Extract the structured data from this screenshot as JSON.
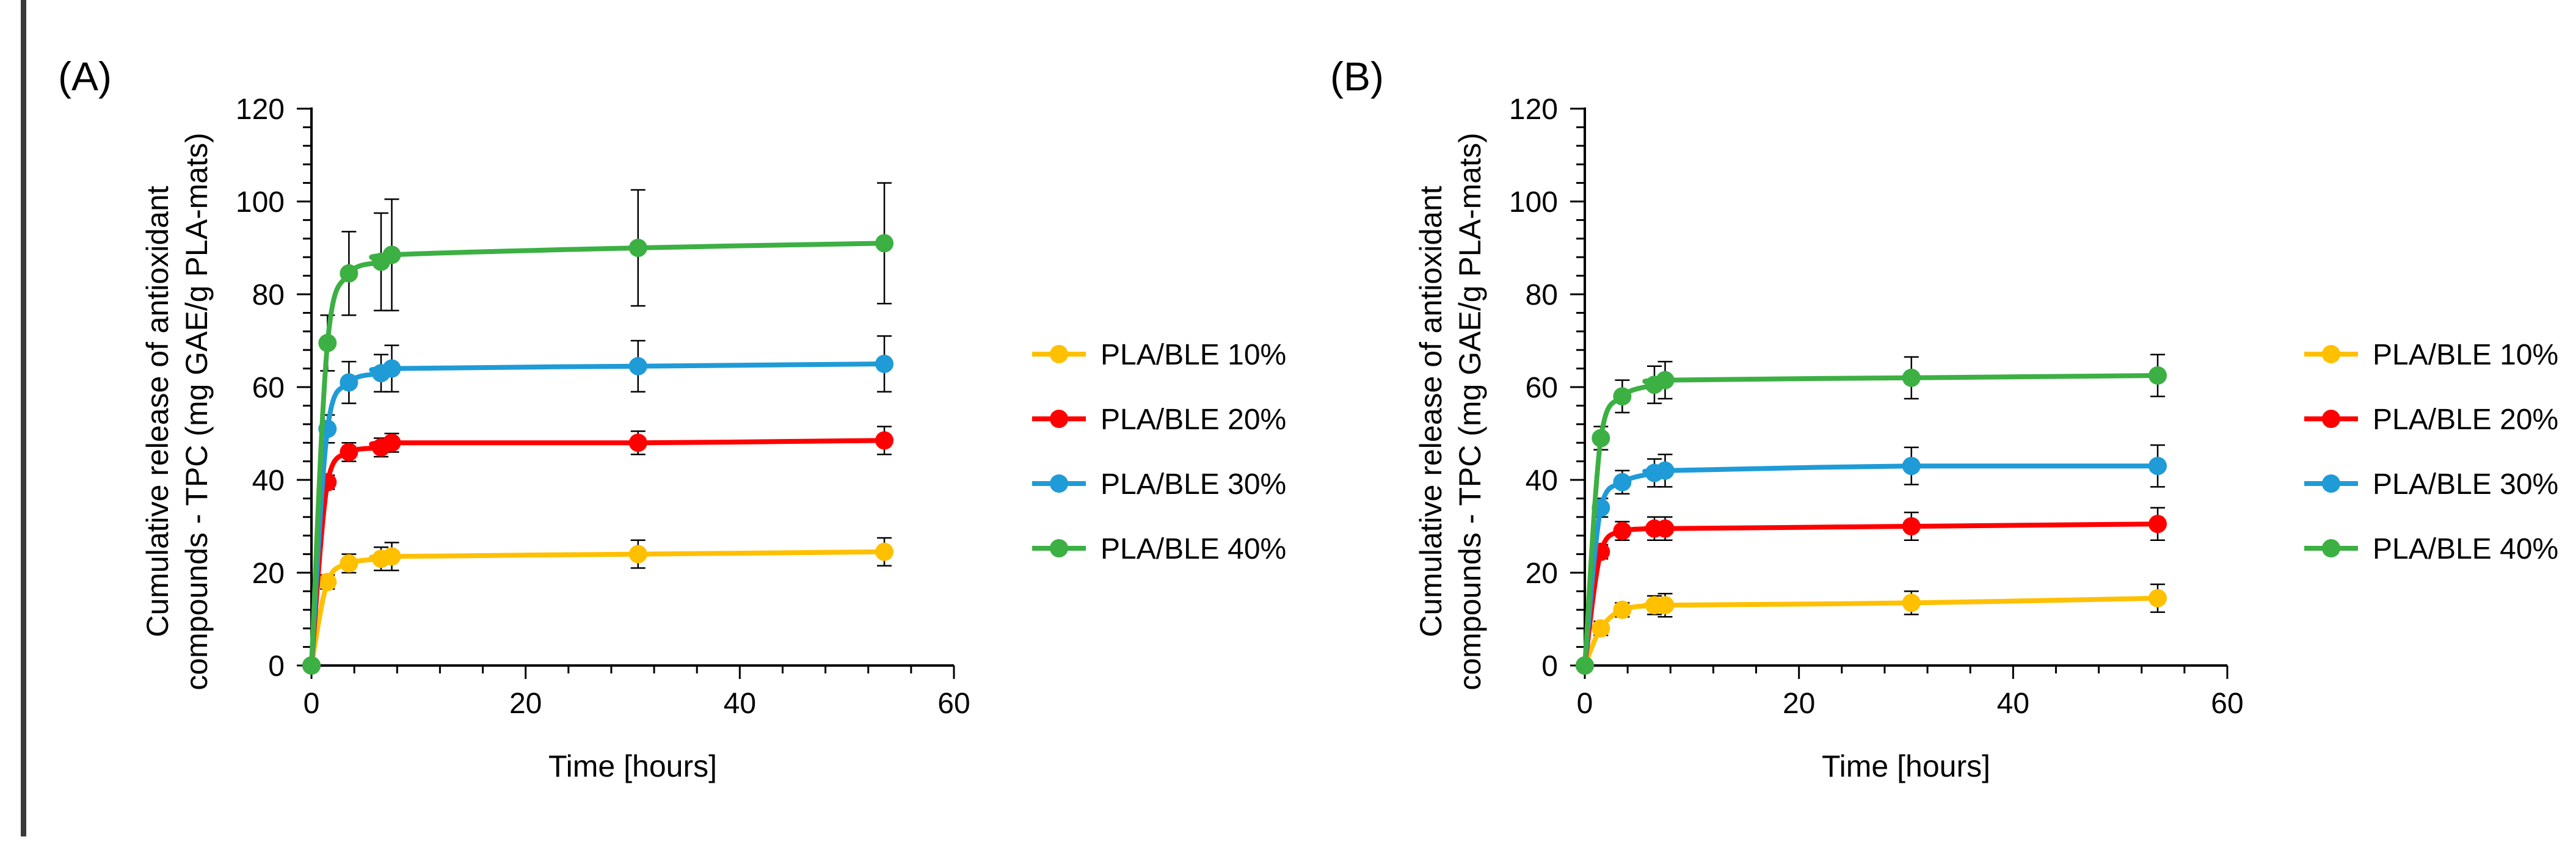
{
  "chart_data": [
    {
      "panel_label": "(A)",
      "type": "line",
      "xlabel": "Time [hours]",
      "ylabel_lines": [
        "Cumulative release of antioxidant",
        "compounds - TPC (mg GAE/g PLA-mats)"
      ],
      "xlim": [
        0,
        60
      ],
      "ylim": [
        0,
        120
      ],
      "x_ticks": [
        0,
        20,
        40,
        60
      ],
      "y_ticks": [
        0,
        20,
        40,
        60,
        80,
        100,
        120
      ],
      "legend_position": "right",
      "series": [
        {
          "name": "PLA/BLE 10%",
          "color": "#FFC000",
          "x": [
            0,
            1.5,
            3.5,
            6.5,
            7.5,
            30.5,
            53.5
          ],
          "y": [
            0,
            18,
            22,
            23,
            23.5,
            24,
            24.5
          ],
          "err": [
            0,
            1.5,
            2,
            2.5,
            3,
            3,
            3
          ]
        },
        {
          "name": "PLA/BLE 20%",
          "color": "#FF0000",
          "x": [
            0,
            1.5,
            3.5,
            6.5,
            7.5,
            30.5,
            53.5
          ],
          "y": [
            0,
            39.5,
            46,
            47,
            48,
            48,
            48.5
          ],
          "err": [
            0,
            1.5,
            2,
            2,
            2,
            2.5,
            3
          ]
        },
        {
          "name": "PLA/BLE 30%",
          "color": "#1F9BD7",
          "x": [
            0,
            1.5,
            3.5,
            6.5,
            7.5,
            30.5,
            53.5
          ],
          "y": [
            0,
            51,
            61,
            63,
            64,
            64.5,
            65
          ],
          "err": [
            0,
            3,
            4.5,
            4,
            5,
            5.5,
            6
          ]
        },
        {
          "name": "PLA/BLE 40%",
          "color": "#3CB043",
          "x": [
            0,
            1.5,
            3.5,
            6.5,
            7.5,
            30.5,
            53.5
          ],
          "y": [
            0,
            69.5,
            84.5,
            87,
            88.5,
            90,
            91
          ],
          "err": [
            0,
            6,
            9,
            10.5,
            12,
            12.5,
            13
          ]
        }
      ]
    },
    {
      "panel_label": "(B)",
      "type": "line",
      "xlabel": "Time [hours]",
      "ylabel_lines": [
        "Cumulative release of antioxidant",
        "compounds - TPC (mg GAE/g PLA-mats)"
      ],
      "xlim": [
        0,
        60
      ],
      "ylim": [
        0,
        120
      ],
      "x_ticks": [
        0,
        20,
        40,
        60
      ],
      "y_ticks": [
        0,
        20,
        40,
        60,
        80,
        100,
        120
      ],
      "legend_position": "right",
      "series": [
        {
          "name": "PLA/BLE 10%",
          "color": "#FFC000",
          "x": [
            0,
            1.5,
            3.5,
            6.5,
            7.5,
            30.5,
            53.5
          ],
          "y": [
            0,
            8,
            12,
            13,
            13,
            13.5,
            14.5
          ],
          "err": [
            0,
            1.5,
            1.5,
            2,
            2.5,
            2.5,
            3
          ]
        },
        {
          "name": "PLA/BLE 20%",
          "color": "#FF0000",
          "x": [
            0,
            1.5,
            3.5,
            6.5,
            7.5,
            30.5,
            53.5
          ],
          "y": [
            0,
            24.5,
            29,
            29.5,
            29.5,
            30,
            30.5
          ],
          "err": [
            0,
            1.5,
            2,
            2.5,
            2.5,
            3,
            3.5
          ]
        },
        {
          "name": "PLA/BLE 30%",
          "color": "#1F9BD7",
          "x": [
            0,
            1.5,
            3.5,
            6.5,
            7.5,
            30.5,
            53.5
          ],
          "y": [
            0,
            34,
            39.5,
            41.5,
            42,
            43,
            43
          ],
          "err": [
            0,
            2,
            2.5,
            3,
            3.5,
            4,
            4.5
          ]
        },
        {
          "name": "PLA/BLE 40%",
          "color": "#3CB043",
          "x": [
            0,
            1.5,
            3.5,
            6.5,
            7.5,
            30.5,
            53.5
          ],
          "y": [
            0,
            49,
            58,
            60.5,
            61.5,
            62,
            62.5
          ],
          "err": [
            0,
            2.5,
            3.5,
            4,
            4,
            4.5,
            4.5
          ]
        }
      ]
    }
  ]
}
